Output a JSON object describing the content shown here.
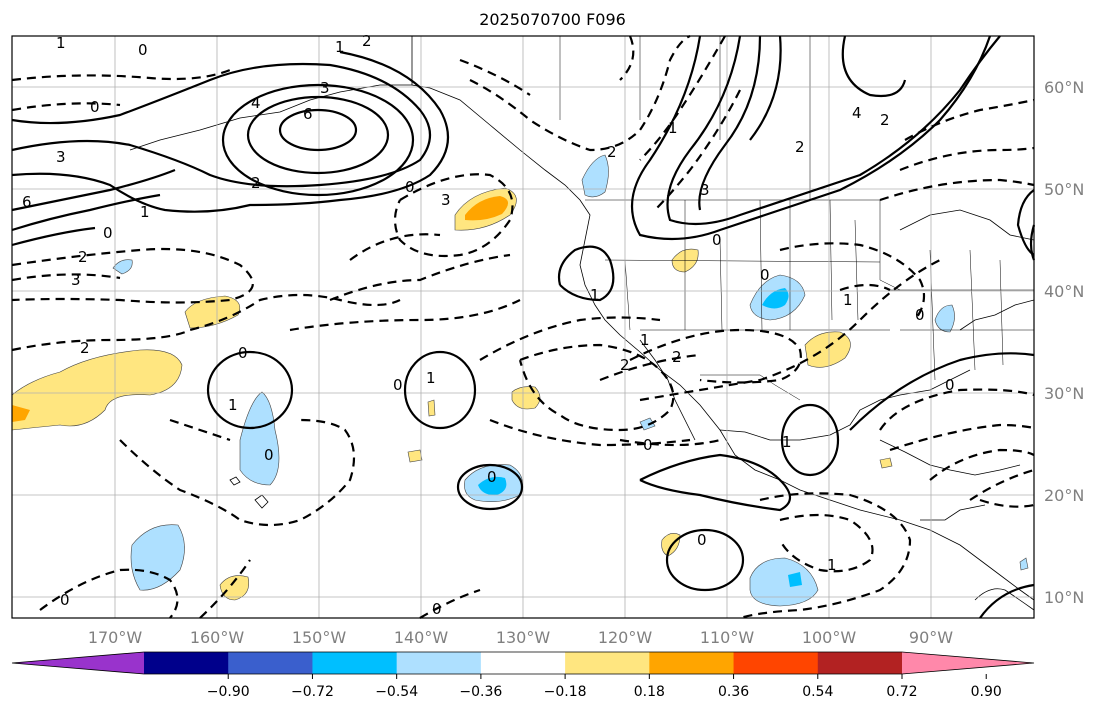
{
  "title": "2025070700 F096",
  "map": {
    "lat_labels": [
      "60°N",
      "50°N",
      "40°N",
      "30°N",
      "20°N",
      "10°N"
    ],
    "lon_labels": [
      "170°W",
      "160°W",
      "150°W",
      "140°W",
      "130°W",
      "120°W",
      "110°W",
      "100°W",
      "90°W"
    ],
    "contour_labels": [
      "1",
      "0",
      "1",
      "2",
      "6",
      "3",
      "4",
      "6",
      "0",
      "3",
      "2",
      "1",
      "0",
      "2",
      "3",
      "2",
      "0",
      "3",
      "4",
      "2",
      "2",
      "1",
      "0",
      "0",
      "2",
      "1",
      "1",
      "2",
      "3",
      "0",
      "2",
      "1",
      "0",
      "0",
      "1",
      "1",
      "0",
      "0",
      "0",
      "1",
      "0",
      "0",
      "1",
      "0",
      "0"
    ]
  },
  "colorbar": {
    "colors": [
      "#9933cc",
      "#00008b",
      "#3a5fcd",
      "#00bfff",
      "#aee0ff",
      "#ffffff",
      "#ffe680",
      "#ffa500",
      "#ff4500",
      "#b22222",
      "#ff88aa"
    ],
    "tick_labels": [
      "−0.90",
      "−0.72",
      "−0.54",
      "−0.36",
      "−0.18",
      "0.18",
      "0.36",
      "0.54",
      "0.72",
      "0.90"
    ]
  }
}
